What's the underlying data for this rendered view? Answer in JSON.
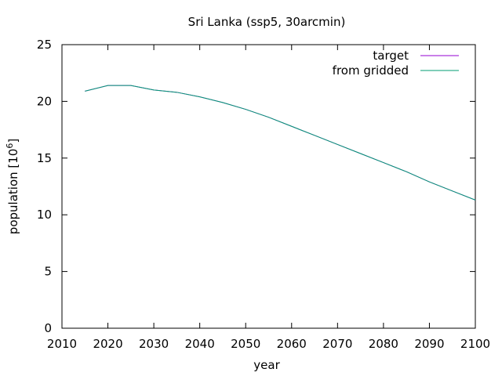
{
  "chart_data": {
    "type": "line",
    "title": "Sri Lanka (ssp5, 30arcmin)",
    "xlabel": "year",
    "ylabel_main": "population [10",
    "ylabel_exp": "6",
    "ylabel_close": "]",
    "xlim": [
      2010,
      2100
    ],
    "ylim": [
      0,
      25
    ],
    "xticks": [
      2010,
      2020,
      2030,
      2040,
      2050,
      2060,
      2070,
      2080,
      2090,
      2100
    ],
    "yticks": [
      0,
      5,
      10,
      15,
      20,
      25
    ],
    "grid": false,
    "legend_position": "top-right",
    "series": [
      {
        "name": "target",
        "color": "#9400d3",
        "x": [
          2015,
          2020,
          2025,
          2030,
          2035,
          2040,
          2045,
          2050,
          2055,
          2060,
          2065,
          2070,
          2075,
          2080,
          2085,
          2090,
          2095,
          2100
        ],
        "y": [
          20.9,
          21.4,
          21.4,
          21.0,
          20.8,
          20.4,
          19.9,
          19.3,
          18.6,
          17.8,
          17.0,
          16.2,
          15.4,
          14.6,
          13.8,
          12.9,
          12.1,
          11.3
        ]
      },
      {
        "name": "from gridded",
        "color": "#009e73",
        "x": [
          2015,
          2020,
          2025,
          2030,
          2035,
          2040,
          2045,
          2050,
          2055,
          2060,
          2065,
          2070,
          2075,
          2080,
          2085,
          2090,
          2095,
          2100
        ],
        "y": [
          20.9,
          21.4,
          21.4,
          21.0,
          20.8,
          20.4,
          19.9,
          19.3,
          18.6,
          17.8,
          17.0,
          16.2,
          15.4,
          14.6,
          13.8,
          12.9,
          12.1,
          11.3
        ]
      }
    ]
  }
}
